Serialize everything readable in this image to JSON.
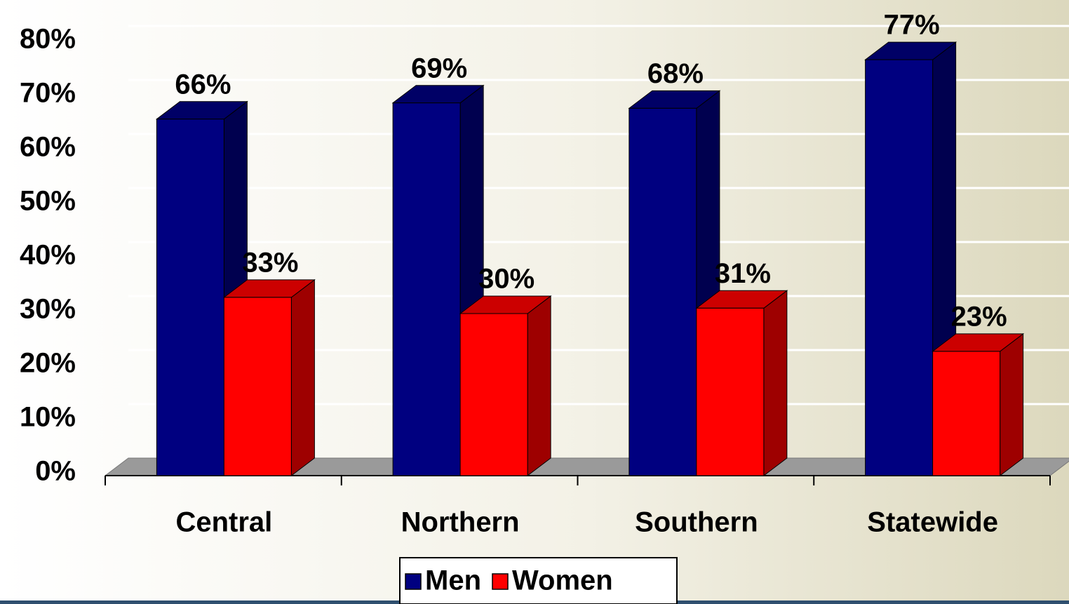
{
  "chart_data": {
    "type": "bar3d",
    "categories": [
      "Central",
      "Northern",
      "Southern",
      "Statewide"
    ],
    "series": [
      {
        "name": "Men",
        "color": "#000080",
        "values": [
          66,
          69,
          68,
          77
        ],
        "value_labels": [
          "66%",
          "69%",
          "68%",
          "77%"
        ]
      },
      {
        "name": "Women",
        "color": "#ff0000",
        "values": [
          33,
          30,
          31,
          23
        ],
        "value_labels": [
          "33%",
          "30%",
          "31%",
          "23%"
        ]
      }
    ],
    "ylim": [
      0,
      80
    ],
    "yticks": [
      {
        "value": 0,
        "label": "0%"
      },
      {
        "value": 10,
        "label": "10%"
      },
      {
        "value": 20,
        "label": "20%"
      },
      {
        "value": 30,
        "label": "30%"
      },
      {
        "value": 40,
        "label": "40%"
      },
      {
        "value": 50,
        "label": "50%"
      },
      {
        "value": 60,
        "label": "60%"
      },
      {
        "value": 70,
        "label": "70%"
      },
      {
        "value": 80,
        "label": "80%"
      }
    ],
    "grid": true,
    "legend": "bottom"
  }
}
